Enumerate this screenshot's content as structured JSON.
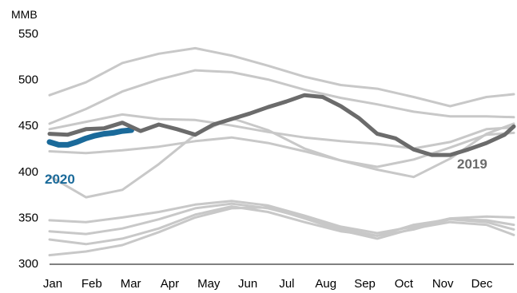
{
  "chart_data": {
    "type": "line",
    "ylabel": "MMB",
    "ylim": [
      300,
      550
    ],
    "yticks": [
      300,
      350,
      400,
      450,
      500,
      550
    ],
    "months": [
      "Jan",
      "Feb",
      "Mar",
      "Apr",
      "May",
      "Jun",
      "Jul",
      "Aug",
      "Sep",
      "Oct",
      "Nov",
      "Dec"
    ],
    "x_unit": "week",
    "grid": false,
    "colors": {
      "history": "#c8c8c8",
      "year2019": "#6b6b6b",
      "year2020": "#1a6a9a"
    },
    "series": [
      {
        "name": "2020",
        "label": "2020",
        "role": "current",
        "x": [
          1,
          2,
          3,
          4,
          5,
          6,
          7,
          8,
          9,
          10
        ],
        "values": [
          432,
          429,
          429,
          432,
          436,
          439,
          441,
          442,
          444,
          445
        ]
      },
      {
        "name": "2019",
        "label": "2019",
        "role": "highlight",
        "x": [
          1,
          3,
          5,
          7,
          9,
          11,
          13,
          15,
          17,
          19,
          21,
          23,
          25,
          27,
          29,
          31,
          33,
          35,
          37,
          39,
          41,
          43,
          45,
          47,
          49,
          51,
          52
        ],
        "values": [
          441,
          440,
          446,
          447,
          453,
          444,
          451,
          446,
          440,
          451,
          457,
          463,
          470,
          476,
          483,
          481,
          471,
          458,
          441,
          436,
          424,
          418,
          418,
          424,
          431,
          440,
          449
        ]
      },
      {
        "role": "history",
        "x": [
          1,
          5,
          9,
          13,
          17,
          21,
          25,
          29,
          33,
          37,
          41,
          45,
          49,
          52
        ],
        "values": [
          483,
          497,
          518,
          528,
          534,
          526,
          515,
          503,
          494,
          490,
          481,
          471,
          481,
          484
        ]
      },
      {
        "role": "history",
        "x": [
          1,
          5,
          9,
          13,
          17,
          21,
          25,
          29,
          33,
          37,
          41,
          45,
          49,
          52
        ],
        "values": [
          452,
          468,
          487,
          500,
          510,
          508,
          500,
          489,
          480,
          473,
          465,
          460,
          460,
          459
        ]
      },
      {
        "role": "history",
        "x": [
          1,
          5,
          9,
          13,
          17,
          21,
          25,
          29,
          33,
          37,
          41,
          45,
          49,
          52
        ],
        "values": [
          446,
          454,
          462,
          457,
          456,
          450,
          443,
          437,
          433,
          430,
          425,
          432,
          446,
          448
        ]
      },
      {
        "role": "history",
        "x": [
          1,
          5,
          9,
          13,
          17,
          21,
          25,
          29,
          33,
          37,
          41,
          45,
          49,
          52
        ],
        "values": [
          422,
          420,
          423,
          427,
          433,
          437,
          431,
          422,
          412,
          402,
          394,
          414,
          441,
          452
        ]
      },
      {
        "role": "history",
        "x": [
          1,
          5,
          9,
          13,
          17,
          21,
          25,
          29,
          33,
          37,
          41,
          45,
          49,
          52
        ],
        "values": [
          395,
          372,
          380,
          408,
          440,
          458,
          445,
          425,
          412,
          405,
          413,
          426,
          440,
          442
        ]
      },
      {
        "role": "history",
        "x": [
          1,
          5,
          9,
          13,
          17,
          21,
          25,
          29,
          33,
          37,
          41,
          45,
          49,
          52
        ],
        "values": [
          347,
          345,
          350,
          356,
          364,
          368,
          363,
          352,
          340,
          333,
          340,
          349,
          351,
          350
        ]
      },
      {
        "role": "history",
        "x": [
          1,
          5,
          9,
          13,
          17,
          21,
          25,
          29,
          33,
          37,
          41,
          45,
          49,
          52
        ],
        "values": [
          335,
          332,
          338,
          348,
          360,
          365,
          360,
          350,
          338,
          330,
          337,
          348,
          347,
          342
        ]
      },
      {
        "role": "history",
        "x": [
          1,
          5,
          9,
          13,
          17,
          21,
          25,
          29,
          33,
          37,
          41,
          45,
          49,
          52
        ],
        "values": [
          326,
          321,
          327,
          338,
          353,
          362,
          356,
          345,
          335,
          330,
          342,
          348,
          345,
          337
        ]
      },
      {
        "role": "history",
        "x": [
          1,
          5,
          9,
          13,
          17,
          21,
          25,
          29,
          33,
          37,
          41,
          45,
          49,
          52
        ],
        "values": [
          309,
          313,
          320,
          334,
          350,
          360,
          361,
          349,
          336,
          327,
          338,
          345,
          342,
          331
        ]
      }
    ]
  }
}
